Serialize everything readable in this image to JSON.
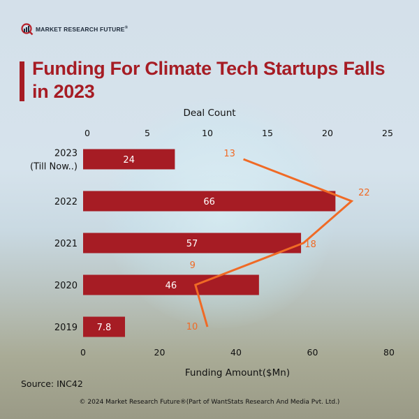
{
  "brand": {
    "name": "MARKET RESEARCH FUTURE",
    "reg": "®"
  },
  "title": "Funding For Climate Tech Startups Falls in 2023",
  "source": "Source: INC42",
  "copyright": "© 2024 Market Research Future®(Part of WantStats Research And Media Pvt. Ltd.)",
  "colors": {
    "bar": "#a61c24",
    "line": "#f06a25",
    "title": "#a61c24"
  },
  "chart_data": {
    "type": "bar",
    "title": "Funding For Climate Tech Startups Falls in 2023",
    "categories": [
      "2023 (Till Now..)",
      "2022",
      "2021",
      "2020",
      "2019"
    ],
    "category_lines": [
      [
        "2023",
        "(Till Now..)"
      ],
      [
        "2022"
      ],
      [
        "2021"
      ],
      [
        "2020"
      ],
      [
        "2019"
      ]
    ],
    "series": [
      {
        "name": "Funding Amount($Mn)",
        "type": "bar",
        "axis": "bottom",
        "values": [
          24,
          66,
          57,
          46,
          7.8
        ]
      },
      {
        "name": "Deal Count",
        "type": "line",
        "axis": "top",
        "values": [
          13,
          22,
          18,
          9,
          10
        ]
      }
    ],
    "xlabel": "Funding Amount($Mn)",
    "x2label": "Deal Count",
    "xlim": [
      0,
      80
    ],
    "x2lim": [
      0,
      25
    ],
    "xticks": [
      0,
      20,
      40,
      60,
      80
    ],
    "x2ticks": [
      0,
      5,
      10,
      15,
      20,
      25
    ],
    "orientation": "horizontal",
    "grid": false,
    "legend": "none"
  }
}
